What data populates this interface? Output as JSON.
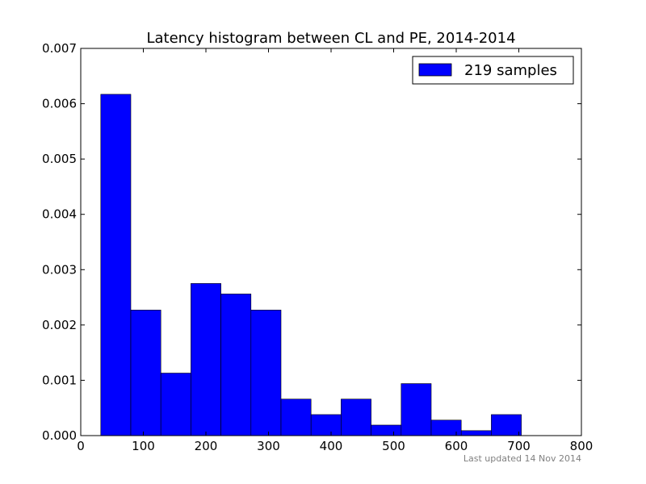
{
  "chart_data": {
    "type": "histogram",
    "title": "Latency histogram between CL and PE, 2014-2014",
    "xlabel": "",
    "ylabel": "",
    "xlim": [
      0,
      800
    ],
    "ylim": [
      0,
      0.007
    ],
    "xticks": [
      0,
      100,
      200,
      300,
      400,
      500,
      600,
      700,
      800
    ],
    "xtick_labels": [
      "0",
      "100",
      "200",
      "300",
      "400",
      "500",
      "600",
      "700",
      "800"
    ],
    "yticks": [
      0.0,
      0.001,
      0.002,
      0.003,
      0.004,
      0.005,
      0.006,
      0.007
    ],
    "ytick_labels": [
      "0.000",
      "0.001",
      "0.002",
      "0.003",
      "0.004",
      "0.005",
      "0.006",
      "0.007"
    ],
    "grid": false,
    "legend_position": "top-right",
    "series": [
      {
        "name": "219 samples",
        "color": "#0000ff",
        "bins": [
          {
            "x0": 32,
            "x1": 80,
            "value": 0.00617
          },
          {
            "x0": 80,
            "x1": 128,
            "value": 0.00227
          },
          {
            "x0": 128,
            "x1": 176,
            "value": 0.00113
          },
          {
            "x0": 176,
            "x1": 224,
            "value": 0.00275
          },
          {
            "x0": 224,
            "x1": 272,
            "value": 0.00256
          },
          {
            "x0": 272,
            "x1": 320,
            "value": 0.00227
          },
          {
            "x0": 320,
            "x1": 368,
            "value": 0.00066
          },
          {
            "x0": 368,
            "x1": 416,
            "value": 0.00038
          },
          {
            "x0": 416,
            "x1": 464,
            "value": 0.00066
          },
          {
            "x0": 464,
            "x1": 512,
            "value": 0.00019
          },
          {
            "x0": 512,
            "x1": 560,
            "value": 0.00094
          },
          {
            "x0": 560,
            "x1": 608,
            "value": 0.00028
          },
          {
            "x0": 608,
            "x1": 656,
            "value": 9e-05
          },
          {
            "x0": 656,
            "x1": 704,
            "value": 0.00038
          }
        ]
      }
    ]
  },
  "footer": {
    "note": "Last updated 14 Nov 2014"
  }
}
